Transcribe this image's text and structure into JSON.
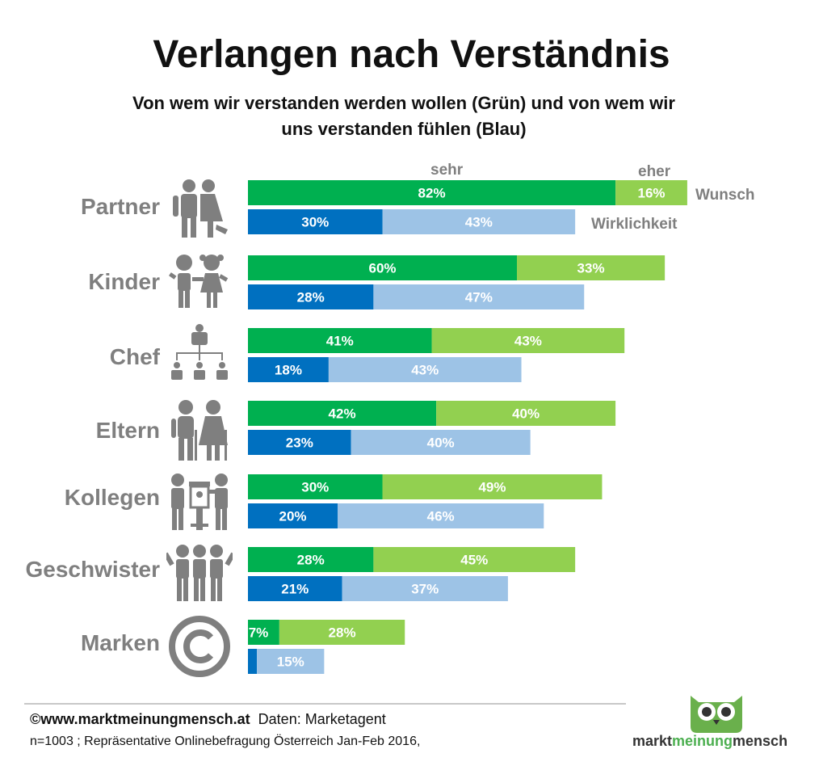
{
  "title": "Verlangen nach Verständnis",
  "subtitle_line1": "Von wem wir verstanden werden wollen (Grün) und von wem wir",
  "subtitle_line2": "uns verstanden fühlen (Blau)",
  "header_sehr": "sehr",
  "header_eher": "eher",
  "label_wunsch": "Wunsch",
  "label_wirklichkeit": "Wirklichkeit",
  "colors": {
    "wunsch_sehr": "#00b050",
    "wunsch_eher": "#92d050",
    "wirklichkeit_sehr": "#0070c0",
    "wirklichkeit_eher": "#9dc3e6",
    "category_text": "#7f7f7f"
  },
  "chart_data": {
    "type": "bar",
    "orientation": "horizontal",
    "stacked": true,
    "title": "Verlangen nach Verständnis",
    "categories": [
      "Partner",
      "Kinder",
      "Chef",
      "Eltern",
      "Kollegen",
      "Geschwister",
      "Marken"
    ],
    "series": [
      {
        "name": "Wunsch sehr",
        "group": "Wunsch",
        "values": [
          82,
          60,
          41,
          42,
          30,
          28,
          7
        ]
      },
      {
        "name": "Wunsch eher",
        "group": "Wunsch",
        "values": [
          16,
          33,
          43,
          40,
          49,
          45,
          28
        ]
      },
      {
        "name": "Wirklichkeit sehr",
        "group": "Wirklichkeit",
        "values": [
          30,
          28,
          18,
          23,
          20,
          21,
          2
        ]
      },
      {
        "name": "Wirklichkeit eher",
        "group": "Wirklichkeit",
        "values": [
          43,
          47,
          43,
          40,
          46,
          37,
          15
        ]
      }
    ],
    "value_labels": {
      "Wunsch sehr": [
        "82%",
        "60%",
        "41%",
        "42%",
        "30%",
        "28%",
        "7%"
      ],
      "Wunsch eher": [
        "16%",
        "33%",
        "43%",
        "40%",
        "49%",
        "45%",
        "28%"
      ],
      "Wirklichkeit sehr": [
        "30%",
        "28%",
        "18%",
        "23%",
        "20%",
        "21%",
        ""
      ],
      "Wirklichkeit eher": [
        "43%",
        "47%",
        "43%",
        "40%",
        "46%",
        "37%",
        "15%"
      ]
    },
    "unit": "%",
    "grid": false
  },
  "icons": [
    "couple-icon",
    "children-icon",
    "org-chart-icon",
    "elderly-couple-icon",
    "colleagues-icon",
    "siblings-icon",
    "copyright-icon"
  ],
  "footer": {
    "source_url": "©www.marktmeinungmensch.at",
    "data_source": "Daten: Marketagent",
    "method": "n=1003 ; Repräsentative  Onlinebefragung Österreich Jan-Feb 2016,"
  },
  "logo": {
    "part1": "markt",
    "part2": "meinung",
    "part3": "mensch"
  }
}
